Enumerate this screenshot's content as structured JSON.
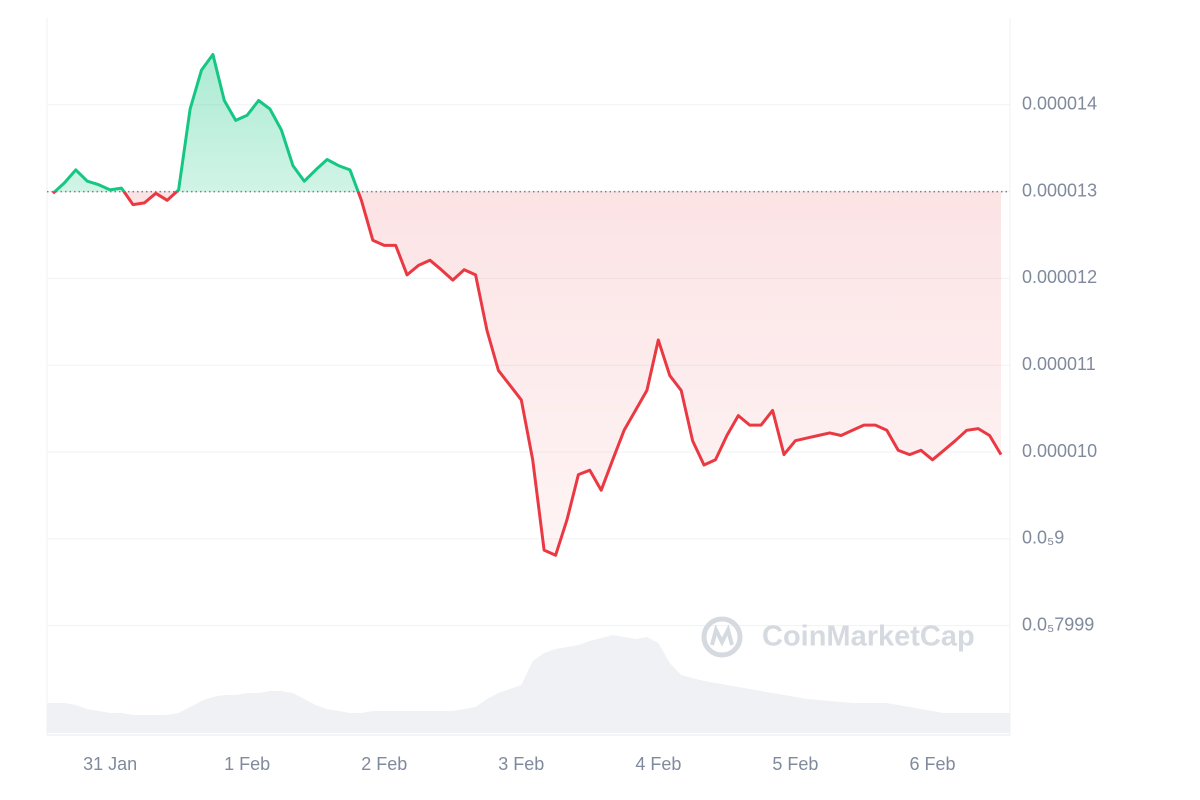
{
  "chart_data": {
    "type": "line",
    "watermark": "CoinMarketCap",
    "categories": [
      null,
      null,
      null,
      null,
      null,
      "31 Jan",
      null,
      null,
      null,
      null,
      null,
      null,
      null,
      null,
      null,
      null,
      null,
      "1 Feb",
      null,
      null,
      null,
      null,
      null,
      null,
      null,
      null,
      null,
      null,
      null,
      "2 Feb",
      null,
      null,
      null,
      null,
      null,
      null,
      null,
      null,
      null,
      null,
      null,
      "3 Feb",
      null,
      null,
      null,
      null,
      null,
      null,
      null,
      null,
      null,
      null,
      null,
      "4 Feb",
      null,
      null,
      null,
      null,
      null,
      null,
      null,
      null,
      null,
      null,
      null,
      "5 Feb",
      null,
      null,
      null,
      null,
      null,
      null,
      null,
      null,
      null,
      null,
      null,
      "6 Feb",
      null,
      null,
      null,
      null,
      null,
      null
    ],
    "values": [
      1.298e-05,
      1.31e-05,
      1.325e-05,
      1.312e-05,
      1.308e-05,
      1.302e-05,
      1.304e-05,
      1.285e-05,
      1.287e-05,
      1.298e-05,
      1.29e-05,
      1.302e-05,
      1.395e-05,
      1.44e-05,
      1.458e-05,
      1.405e-05,
      1.382e-05,
      1.388e-05,
      1.405e-05,
      1.395e-05,
      1.371e-05,
      1.33e-05,
      1.312e-05,
      1.325e-05,
      1.337e-05,
      1.33e-05,
      1.325e-05,
      1.29e-05,
      1.244e-05,
      1.238e-05,
      1.238e-05,
      1.204e-05,
      1.215e-05,
      1.221e-05,
      1.21e-05,
      1.198e-05,
      1.21e-05,
      1.204e-05,
      1.14e-05,
      1.094e-05,
      1.077e-05,
      1.06e-05,
      9.91e-06,
      8.87e-06,
      8.81e-06,
      9.22e-06,
      9.74e-06,
      9.79e-06,
      9.56e-06,
      9.91e-06,
      1.025e-05,
      1.048e-05,
      1.071e-05,
      1.129e-05,
      1.088e-05,
      1.071e-05,
      1.013e-05,
      9.85e-06,
      9.91e-06,
      1.019e-05,
      1.042e-05,
      1.031e-05,
      1.031e-05,
      1.048e-05,
      9.97e-06,
      1.013e-05,
      1.016e-05,
      1.019e-05,
      1.022e-05,
      1.019e-05,
      1.025e-05,
      1.031e-05,
      1.031e-05,
      1.025e-05,
      1.002e-05,
      9.97e-06,
      1.002e-05,
      9.91e-06,
      1.002e-05,
      1.013e-05,
      1.025e-05,
      1.027e-05,
      1.019e-05,
      9.97e-06
    ],
    "volume": [
      30,
      30,
      28,
      24,
      22,
      20,
      20,
      18,
      18,
      18,
      18,
      20,
      26,
      32,
      36,
      38,
      38,
      40,
      40,
      42,
      42,
      40,
      34,
      28,
      24,
      22,
      20,
      20,
      22,
      22,
      22,
      22,
      22,
      22,
      22,
      22,
      24,
      26,
      34,
      40,
      44,
      48,
      72,
      80,
      84,
      86,
      88,
      92,
      95,
      98,
      96,
      94,
      96,
      90,
      70,
      58,
      55,
      52,
      50,
      48,
      46,
      44,
      42,
      40,
      38,
      36,
      34,
      33,
      32,
      31,
      30,
      30,
      30,
      30,
      28,
      26,
      24,
      22,
      20,
      20,
      20,
      20,
      20,
      20
    ],
    "volume_lim": [
      0,
      100
    ],
    "baseline": 1.3e-05,
    "ylim": [
      6.74e-06,
      1.5e-05
    ],
    "yticks": [
      {
        "value": 1.4e-05,
        "label": "0.000014"
      },
      {
        "value": 1.3e-05,
        "label": "0.000013"
      },
      {
        "value": 1.2e-05,
        "label": "0.000012"
      },
      {
        "value": 1.1e-05,
        "label": "0.000011"
      },
      {
        "value": 1e-05,
        "label": "0.000010"
      },
      {
        "value": 9e-06,
        "label": "0.0₅9"
      },
      {
        "value": 8e-06,
        "label": "0.0₅7999"
      }
    ],
    "up_color": "#16c784",
    "down_color": "#ea3943",
    "grid": true
  }
}
